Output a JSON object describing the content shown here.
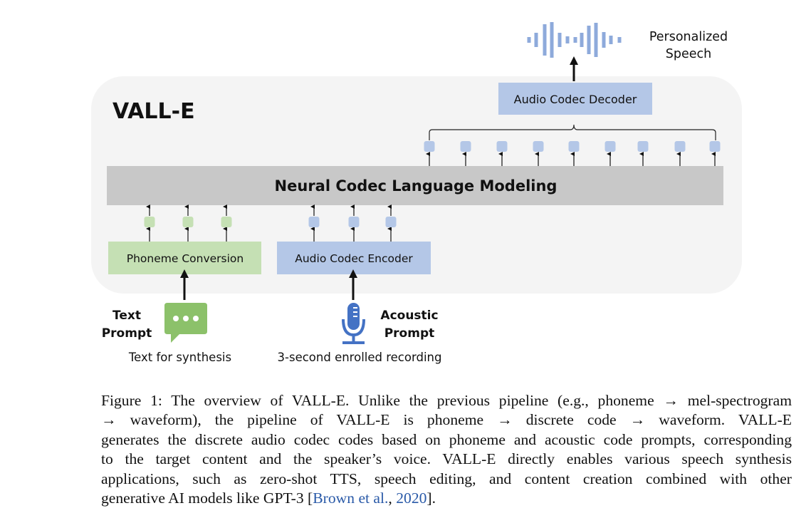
{
  "figure": {
    "model_name": "VALL-E",
    "lm_label": "Neural Codec Language Modeling",
    "decoder_label": "Audio Codec Decoder",
    "encoder_label": "Audio Codec Encoder",
    "phoneme_label": "Phoneme Conversion",
    "output_label_line1": "Personalized",
    "output_label_line2": "Speech",
    "text_prompt_line1": "Text",
    "text_prompt_line2": "Prompt",
    "text_prompt_caption": "Text for synthesis",
    "acoustic_prompt_line1": "Acoustic",
    "acoustic_prompt_line2": "Prompt",
    "acoustic_prompt_caption": "3-second enrolled recording",
    "colors": {
      "blue": "#b4c7e7",
      "green": "#c5e0b4",
      "gray": "#c8c8c8",
      "panel": "#f4f4f4",
      "icon_blue": "#4472c4",
      "icon_green": "#8cc16a",
      "wave": "#8eaadb"
    },
    "icons": [
      "waveform-icon",
      "chat-bubble-icon",
      "microphone-icon"
    ]
  },
  "caption": {
    "lines": [
      "Figure 1:  The overview of VALL-E. Unlike the previous pipeline (e.g., phoneme → mel-spectrogram",
      "→ waveform), the pipeline of VALL-E is phoneme → discrete code → waveform.  VALL-E",
      "generates the discrete audio codec codes based on phoneme and acoustic code prompts, corresponding",
      "to the target content and the speaker’s voice. VALL-E directly enables various speech synthesis",
      "applications, such as zero-shot TTS, speech editing, and content creation combined with other",
      "generative AI models like GPT-3 ["
    ],
    "citation_author": "Brown et al.",
    "citation_sep": ", ",
    "citation_year": "2020",
    "end": "]."
  }
}
